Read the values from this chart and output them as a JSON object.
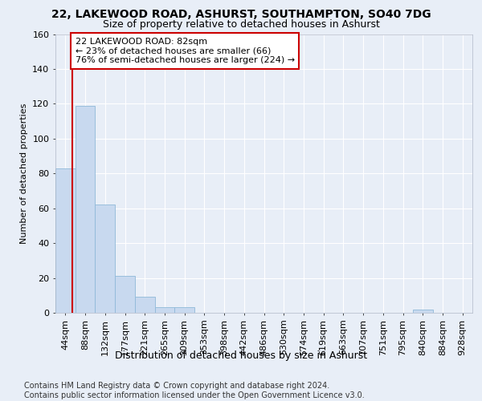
{
  "title1": "22, LAKEWOOD ROAD, ASHURST, SOUTHAMPTON, SO40 7DG",
  "title2": "Size of property relative to detached houses in Ashurst",
  "xlabel": "Distribution of detached houses by size in Ashurst",
  "ylabel": "Number of detached properties",
  "footer": "Contains HM Land Registry data © Crown copyright and database right 2024.\nContains public sector information licensed under the Open Government Licence v3.0.",
  "bin_labels": [
    "44sqm",
    "88sqm",
    "132sqm",
    "177sqm",
    "221sqm",
    "265sqm",
    "309sqm",
    "353sqm",
    "398sqm",
    "442sqm",
    "486sqm",
    "530sqm",
    "574sqm",
    "619sqm",
    "663sqm",
    "707sqm",
    "751sqm",
    "795sqm",
    "840sqm",
    "884sqm",
    "928sqm"
  ],
  "bar_values": [
    83,
    119,
    62,
    21,
    9,
    3,
    3,
    0,
    0,
    0,
    0,
    0,
    0,
    0,
    0,
    0,
    0,
    0,
    2,
    0,
    0
  ],
  "bar_color": "#c8d9ef",
  "bar_edge_color": "#8fb8d8",
  "subject_line_color": "#cc0000",
  "annotation_text": "22 LAKEWOOD ROAD: 82sqm\n← 23% of detached houses are smaller (66)\n76% of semi-detached houses are larger (224) →",
  "annotation_box_edge_color": "#cc0000",
  "ylim": [
    0,
    160
  ],
  "yticks": [
    0,
    20,
    40,
    60,
    80,
    100,
    120,
    140,
    160
  ],
  "bg_color": "#e8eef7",
  "plot_bg_color": "#e8eef7",
  "grid_color": "#ffffff",
  "title1_fontsize": 10,
  "title2_fontsize": 9,
  "xlabel_fontsize": 9,
  "ylabel_fontsize": 8,
  "tick_fontsize": 8,
  "footer_fontsize": 7,
  "annot_fontsize": 8
}
